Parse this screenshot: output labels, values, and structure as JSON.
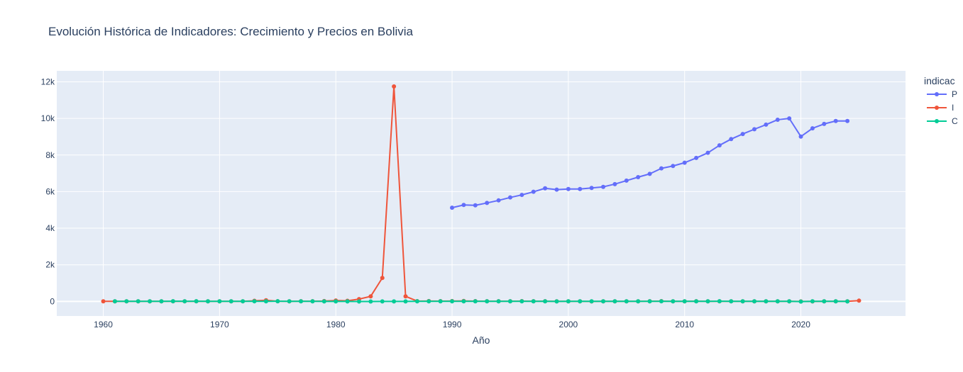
{
  "chart_data": {
    "type": "line",
    "title": "Evolución Histórica de Indicadores: Crecimiento y Precios en Bolivia",
    "xlabel": "Año",
    "ylabel": "",
    "xlim": [
      1956,
      2029
    ],
    "ylim": [
      -800,
      12600
    ],
    "x_ticks": [
      1960,
      1970,
      1980,
      1990,
      2000,
      2010,
      2020
    ],
    "y_ticks": [
      0,
      2000,
      4000,
      6000,
      8000,
      10000,
      12000
    ],
    "y_tick_labels": [
      "0",
      "2k",
      "4k",
      "6k",
      "8k",
      "10k",
      "12k"
    ],
    "grid": true,
    "legend_title": "indicac",
    "legend_placement": "top-right (clipped)",
    "colors": {
      "plot_bg": "#e5ecf6",
      "grid": "#ffffff",
      "text": "#2a3f5f"
    },
    "series": [
      {
        "name": "P",
        "color": "#636efa",
        "x": [
          1990,
          1991,
          1992,
          1993,
          1994,
          1995,
          1996,
          1997,
          1998,
          1999,
          2000,
          2001,
          2002,
          2003,
          2004,
          2005,
          2006,
          2007,
          2008,
          2009,
          2010,
          2011,
          2012,
          2013,
          2014,
          2015,
          2016,
          2017,
          2018,
          2019,
          2020,
          2021,
          2022,
          2023,
          2024
        ],
        "y": [
          5120,
          5270,
          5250,
          5380,
          5520,
          5680,
          5820,
          5990,
          6180,
          6110,
          6140,
          6140,
          6200,
          6260,
          6410,
          6600,
          6790,
          6970,
          7270,
          7400,
          7580,
          7840,
          8120,
          8530,
          8870,
          9150,
          9410,
          9660,
          9930,
          10000,
          9010,
          9460,
          9700,
          9860,
          9860
        ]
      },
      {
        "name": "I",
        "color": "#ef553b",
        "x": [
          1960,
          1961,
          1962,
          1963,
          1964,
          1965,
          1966,
          1967,
          1968,
          1969,
          1970,
          1971,
          1972,
          1973,
          1974,
          1975,
          1976,
          1977,
          1978,
          1979,
          1980,
          1981,
          1982,
          1983,
          1984,
          1985,
          1986,
          1987,
          1988,
          1989,
          1990,
          1991,
          1992,
          1993,
          1994,
          1995,
          1996,
          1997,
          1998,
          1999,
          2000,
          2001,
          2002,
          2003,
          2004,
          2005,
          2006,
          2007,
          2008,
          2009,
          2010,
          2011,
          2012,
          2013,
          2014,
          2015,
          2016,
          2017,
          2018,
          2019,
          2020,
          2021,
          2022,
          2023,
          2024,
          2025
        ],
        "y": [
          5,
          3,
          5,
          3,
          3,
          4,
          6,
          6,
          6,
          4,
          4,
          4,
          6,
          32,
          63,
          8,
          4,
          8,
          10,
          20,
          47,
          32,
          124,
          276,
          1281,
          11750,
          276,
          15,
          16,
          15,
          17,
          21,
          12,
          9,
          8,
          10,
          12,
          7,
          9,
          2,
          5,
          2,
          1,
          3,
          4,
          5,
          4,
          9,
          14,
          3,
          3,
          10,
          5,
          6,
          6,
          4,
          4,
          3,
          2,
          2,
          1,
          1,
          2,
          3,
          5,
          40
        ]
      },
      {
        "name": "C",
        "color": "#00cc96",
        "x": [
          1961,
          1962,
          1963,
          1964,
          1965,
          1966,
          1967,
          1968,
          1969,
          1970,
          1971,
          1972,
          1973,
          1974,
          1975,
          1976,
          1977,
          1978,
          1979,
          1980,
          1981,
          1982,
          1983,
          1984,
          1985,
          1986,
          1987,
          1988,
          1989,
          1990,
          1991,
          1992,
          1993,
          1994,
          1995,
          1996,
          1997,
          1998,
          1999,
          2000,
          2001,
          2002,
          2003,
          2004,
          2005,
          2006,
          2007,
          2008,
          2009,
          2010,
          2011,
          2012,
          2013,
          2014,
          2015,
          2016,
          2017,
          2018,
          2019,
          2020,
          2021,
          2022,
          2023,
          2024
        ],
        "y": [
          2,
          6,
          6,
          5,
          5,
          7,
          6,
          8,
          5,
          5,
          5,
          6,
          6,
          5,
          7,
          6,
          4,
          3,
          0,
          -1,
          0,
          -4,
          -4,
          0,
          -1,
          -2,
          2,
          3,
          3,
          5,
          5,
          2,
          4,
          5,
          5,
          4,
          5,
          5,
          0,
          2,
          2,
          2,
          3,
          4,
          4,
          5,
          5,
          6,
          3,
          4,
          5,
          5,
          7,
          5,
          5,
          4,
          4,
          4,
          2,
          -9,
          6,
          4,
          3,
          1
        ]
      }
    ]
  }
}
